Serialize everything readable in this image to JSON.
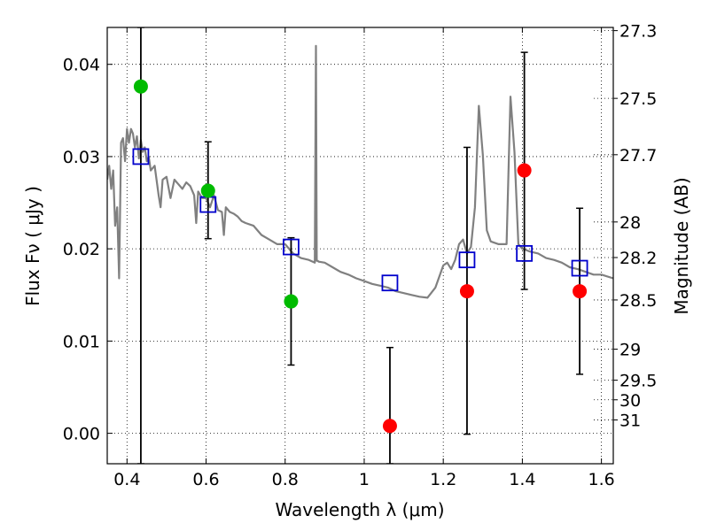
{
  "chart_data": {
    "type": "scatter",
    "xlabel": "Wavelength  λ (μm)",
    "ylabel": "Flux  Fν  ( μJy )",
    "y2label": "Magnitude (AB)",
    "xlim": [
      0.35,
      1.63
    ],
    "ylim": [
      -0.0033,
      0.044
    ],
    "grid": true,
    "x_ticks": [
      {
        "value": 0.4,
        "label": "0.4"
      },
      {
        "value": 0.6,
        "label": "0.6"
      },
      {
        "value": 0.8,
        "label": "0.8"
      },
      {
        "value": 1.0,
        "label": "1"
      },
      {
        "value": 1.2,
        "label": "1.2"
      },
      {
        "value": 1.4,
        "label": "1.4"
      },
      {
        "value": 1.6,
        "label": "1.6"
      }
    ],
    "y_ticks": [
      {
        "value": 0.0,
        "label": "0.00"
      },
      {
        "value": 0.01,
        "label": "0.01"
      },
      {
        "value": 0.02,
        "label": "0.02"
      },
      {
        "value": 0.03,
        "label": "0.03"
      },
      {
        "value": 0.04,
        "label": "0.04"
      }
    ],
    "mag_ticks": [
      {
        "value": 27.3,
        "label": "27.3"
      },
      {
        "value": 27.5,
        "label": "27.5"
      },
      {
        "value": 27.7,
        "label": "27.7"
      },
      {
        "value": 28,
        "label": "28"
      },
      {
        "value": 28.2,
        "label": "28.2"
      },
      {
        "value": 28.5,
        "label": "28.5"
      },
      {
        "value": 29,
        "label": "29"
      },
      {
        "value": 29.5,
        "label": "29.5"
      },
      {
        "value": 30,
        "label": "30"
      },
      {
        "value": 31,
        "label": "31"
      }
    ],
    "model_spectrum": {
      "color": "#808080",
      "x": [
        0.35,
        0.355,
        0.36,
        0.365,
        0.37,
        0.375,
        0.38,
        0.385,
        0.39,
        0.395,
        0.4,
        0.405,
        0.41,
        0.415,
        0.42,
        0.425,
        0.43,
        0.435,
        0.44,
        0.445,
        0.45,
        0.455,
        0.46,
        0.47,
        0.48,
        0.485,
        0.49,
        0.5,
        0.51,
        0.52,
        0.53,
        0.54,
        0.55,
        0.56,
        0.57,
        0.575,
        0.58,
        0.59,
        0.6,
        0.61,
        0.62,
        0.63,
        0.64,
        0.645,
        0.65,
        0.66,
        0.67,
        0.68,
        0.69,
        0.7,
        0.72,
        0.74,
        0.76,
        0.78,
        0.8,
        0.82,
        0.84,
        0.86,
        0.875,
        0.878,
        0.88,
        0.882,
        0.885,
        0.9,
        0.92,
        0.94,
        0.96,
        0.98,
        1.0,
        1.02,
        1.04,
        1.06,
        1.08,
        1.1,
        1.12,
        1.14,
        1.16,
        1.18,
        1.2,
        1.21,
        1.22,
        1.23,
        1.24,
        1.25,
        1.26,
        1.27,
        1.28,
        1.29,
        1.3,
        1.31,
        1.32,
        1.34,
        1.36,
        1.37,
        1.38,
        1.39,
        1.4,
        1.42,
        1.44,
        1.46,
        1.48,
        1.5,
        1.52,
        1.54,
        1.56,
        1.58,
        1.6,
        1.63
      ],
      "y": [
        0.0275,
        0.029,
        0.0265,
        0.0285,
        0.0225,
        0.0245,
        0.0168,
        0.0315,
        0.032,
        0.0295,
        0.033,
        0.0315,
        0.033,
        0.0325,
        0.031,
        0.0322,
        0.0298,
        0.0318,
        0.0305,
        0.031,
        0.0295,
        0.03,
        0.0285,
        0.029,
        0.0258,
        0.0245,
        0.0275,
        0.0278,
        0.0255,
        0.0275,
        0.027,
        0.0265,
        0.0272,
        0.0268,
        0.0258,
        0.0228,
        0.0262,
        0.0255,
        0.0255,
        0.0245,
        0.0258,
        0.0242,
        0.024,
        0.0215,
        0.0245,
        0.024,
        0.0238,
        0.0235,
        0.023,
        0.0228,
        0.0225,
        0.0215,
        0.021,
        0.0205,
        0.0205,
        0.0195,
        0.019,
        0.0188,
        0.0185,
        0.042,
        0.0187,
        0.0187,
        0.0186,
        0.0185,
        0.018,
        0.0175,
        0.0172,
        0.0168,
        0.0165,
        0.0162,
        0.016,
        0.0158,
        0.0154,
        0.0152,
        0.015,
        0.0148,
        0.0147,
        0.0158,
        0.0182,
        0.0185,
        0.0178,
        0.0188,
        0.0205,
        0.021,
        0.0195,
        0.0202,
        0.0245,
        0.0355,
        0.0302,
        0.022,
        0.0208,
        0.0205,
        0.0205,
        0.0365,
        0.0305,
        0.0205,
        0.02,
        0.0197,
        0.0195,
        0.019,
        0.0188,
        0.0185,
        0.018,
        0.0178,
        0.0175,
        0.0172,
        0.0172,
        0.0168
      ]
    },
    "blue_squares": {
      "color": "#0000cc",
      "x": [
        0.435,
        0.605,
        0.815,
        1.065,
        1.26,
        1.405,
        1.545
      ],
      "y": [
        0.03,
        0.0248,
        0.0202,
        0.0163,
        0.0188,
        0.0195,
        0.0179
      ]
    },
    "green_points": {
      "color": "#00bb00",
      "x": [
        0.435,
        0.605,
        0.815
      ],
      "y": [
        0.0376,
        0.0263,
        0.0143
      ]
    },
    "red_points": {
      "color": "#ff0000",
      "x": [
        1.065,
        1.26,
        1.405,
        1.545
      ],
      "y": [
        0.0008,
        0.0154,
        0.0285,
        0.0154
      ]
    },
    "error_bars": [
      {
        "x": 0.435,
        "low": -0.0033,
        "high": 0.044
      },
      {
        "x": 0.605,
        "low": 0.0211,
        "high": 0.0316
      },
      {
        "x": 0.815,
        "low": 0.0074,
        "high": 0.0212
      },
      {
        "x": 1.065,
        "low": -0.0033,
        "high": 0.0093
      },
      {
        "x": 1.26,
        "low": -0.0001,
        "high": 0.031
      },
      {
        "x": 1.405,
        "low": 0.0156,
        "high": 0.0413
      },
      {
        "x": 1.545,
        "low": 0.0064,
        "high": 0.0244
      }
    ]
  }
}
